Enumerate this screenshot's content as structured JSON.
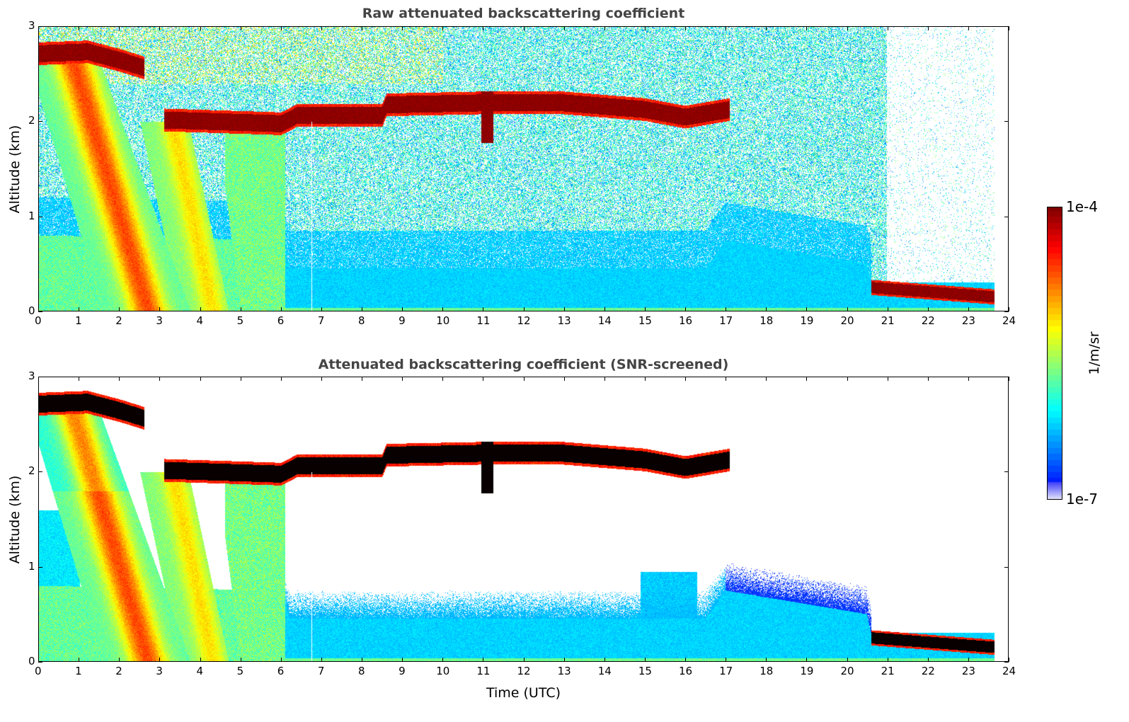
{
  "chart_data": [
    {
      "type": "heatmap",
      "title": "Raw attenuated backscattering coefficient",
      "xlabel": "",
      "ylabel": "Altitude (km)",
      "xlim": [
        0,
        24
      ],
      "ylim": [
        0,
        3
      ],
      "xticks": [
        "0",
        "1",
        "2",
        "3",
        "4",
        "5",
        "6",
        "7",
        "8",
        "9",
        "10",
        "11",
        "12",
        "13",
        "14",
        "15",
        "16",
        "17",
        "18",
        "19",
        "20",
        "21",
        "22",
        "23",
        "24"
      ],
      "yticks": [
        "0",
        "1",
        "2",
        "3"
      ],
      "snr_screened": false
    },
    {
      "type": "heatmap",
      "title": "Attenuated backscattering coefficient (SNR-screened)",
      "xlabel": "Time (UTC)",
      "ylabel": "Altitude (km)",
      "xlim": [
        0,
        24
      ],
      "ylim": [
        0,
        3
      ],
      "xticks": [
        "0",
        "1",
        "2",
        "3",
        "4",
        "5",
        "6",
        "7",
        "8",
        "9",
        "10",
        "11",
        "12",
        "13",
        "14",
        "15",
        "16",
        "17",
        "18",
        "19",
        "20",
        "21",
        "22",
        "23",
        "24"
      ],
      "yticks": [
        "0",
        "1",
        "2",
        "3"
      ],
      "snr_screened": true
    }
  ],
  "colorbar": {
    "label": "1/m/sr",
    "min_label": "1e-7",
    "max_label": "1e-4",
    "log_min": -7,
    "log_max": -4,
    "scale": "log"
  },
  "features": {
    "data_end_time": 23.65,
    "upper_cloud": {
      "t": [
        0,
        2.6
      ],
      "z": [
        [
          0,
          2.72
        ],
        [
          1.2,
          2.74
        ],
        [
          2.0,
          2.65
        ],
        [
          2.6,
          2.57
        ]
      ],
      "half_thickness_km": 0.12,
      "log_beta": -4.1
    },
    "mid_cloud": {
      "t": [
        3.1,
        17.1
      ],
      "z": [
        [
          3.1,
          2.02
        ],
        [
          6.0,
          1.98
        ],
        [
          6.4,
          2.07
        ],
        [
          8.5,
          2.07
        ],
        [
          8.6,
          2.18
        ],
        [
          10.9,
          2.2
        ],
        [
          11.3,
          2.2
        ],
        [
          13,
          2.2
        ],
        [
          15,
          2.13
        ],
        [
          16,
          2.05
        ],
        [
          17.1,
          2.13
        ]
      ],
      "half_thickness_km": 0.12,
      "log_beta": -4.1
    },
    "low_cloud": {
      "t": [
        20.6,
        23.65
      ],
      "z": [
        [
          20.6,
          0.25
        ],
        [
          23.65,
          0.15
        ]
      ],
      "half_thickness_km": 0.08,
      "log_beta": -4.1
    },
    "boundary_layer_top_km": [
      [
        0,
        0.8
      ],
      [
        6,
        0.75
      ],
      [
        6.2,
        0.45
      ],
      [
        16.5,
        0.45
      ],
      [
        17,
        0.75
      ],
      [
        20.5,
        0.5
      ],
      [
        20.6,
        0.3
      ]
    ]
  }
}
